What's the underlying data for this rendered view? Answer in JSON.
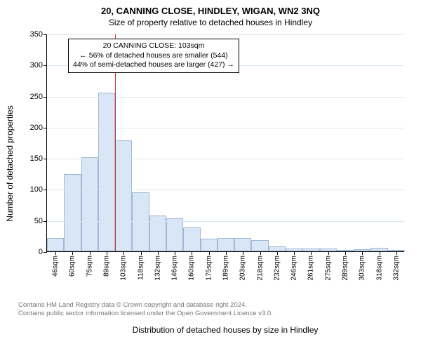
{
  "title": "20, CANNING CLOSE, HINDLEY, WIGAN, WN2 3NQ",
  "subtitle": "Size of property relative to detached houses in Hindley",
  "chart": {
    "type": "histogram",
    "y_label": "Number of detached properties",
    "x_label": "Distribution of detached houses by size in Hindley",
    "ylim": [
      0,
      350
    ],
    "ytick_step": 50,
    "bar_fill": "#d9e6f5",
    "bar_stroke": "#9fb8d6",
    "grid_color": "#d9e6f2",
    "background": "#ffffff",
    "axis_color": "#000000",
    "bar_width_ratio": 1.0,
    "categories": [
      "46sqm",
      "60sqm",
      "75sqm",
      "89sqm",
      "103sqm",
      "118sqm",
      "132sqm",
      "146sqm",
      "160sqm",
      "175sqm",
      "189sqm",
      "203sqm",
      "218sqm",
      "232sqm",
      "246sqm",
      "261sqm",
      "275sqm",
      "289sqm",
      "303sqm",
      "318sqm",
      "332sqm"
    ],
    "values": [
      22,
      124,
      151,
      255,
      178,
      95,
      58,
      53,
      38,
      20,
      21,
      22,
      18,
      8,
      5,
      4,
      4,
      2,
      3,
      6,
      2
    ],
    "reference_line": {
      "index_after": 3,
      "color": "#cc3333",
      "width": 1.5
    },
    "annotation": {
      "lines": [
        "20 CANNING CLOSE: 103sqm",
        "← 56% of detached houses are smaller (544)",
        "44% of semi-detached houses are larger (427) →"
      ],
      "border": "#000000",
      "background": "#ffffff",
      "fontsize": 10.5
    }
  },
  "footer": {
    "line1": "Contains HM Land Registry data © Crown copyright and database right 2024.",
    "line2": "Contains public sector information licensed under the Open Government Licence v3.0.",
    "color": "#777777",
    "fontsize": 9.5
  }
}
